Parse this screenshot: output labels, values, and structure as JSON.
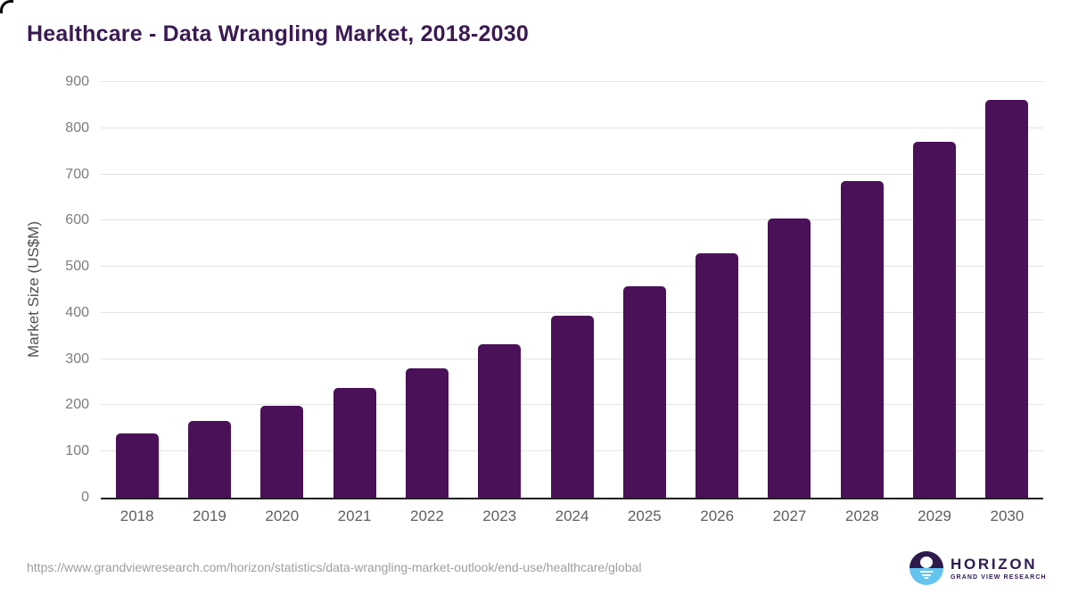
{
  "chart_data": {
    "type": "bar",
    "title": "Healthcare - Data Wrangling Market, 2018-2030",
    "categories": [
      "2018",
      "2019",
      "2020",
      "2021",
      "2022",
      "2023",
      "2024",
      "2025",
      "2026",
      "2027",
      "2028",
      "2029",
      "2030"
    ],
    "values": [
      140,
      167,
      198,
      237,
      281,
      333,
      394,
      458,
      529,
      605,
      685,
      771,
      862
    ],
    "xlabel": "",
    "ylabel": "Market Size (US$M)",
    "ylim": [
      0,
      900
    ],
    "y_ticks": [
      0,
      100,
      200,
      300,
      400,
      500,
      600,
      700,
      800,
      900
    ],
    "grid": true,
    "legend": "none"
  },
  "footer": {
    "source_url": "https://www.grandviewresearch.com/horizon/statistics/data-wrangling-market-outlook/end-use/healthcare/global",
    "logo": {
      "title": "HORIZON",
      "subtitle": "GRAND VIEW RESEARCH"
    }
  },
  "colors": {
    "title-color": "#3a1a52",
    "bar-color": "#4a1158",
    "axis-color": "#1f1f1f",
    "grid-color": "#e3e3e3",
    "tick-color": "#7d7d7d",
    "xlabel-color": "#5f5f5f",
    "ytitle-color": "#4f4f4f",
    "url-color": "#9e9e9e",
    "logo-purple": "#2d1b4e",
    "logo-blue": "#63c4ef",
    "logo-text-color": "#2e1a52"
  }
}
